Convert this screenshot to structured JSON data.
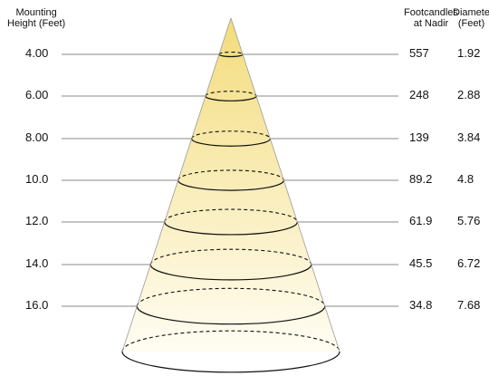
{
  "headers": {
    "height": [
      "Mounting",
      "Height (Feet)"
    ],
    "footcandles": [
      "Footcandles",
      "at Nadir"
    ],
    "diameter": [
      "Diamete",
      "(Feet)"
    ]
  },
  "rows": [
    {
      "height": "4.00",
      "footcandles": "557",
      "diameter": "1.92"
    },
    {
      "height": "6.00",
      "footcandles": "248",
      "diameter": "2.88"
    },
    {
      "height": "8.00",
      "footcandles": "139",
      "diameter": "3.84"
    },
    {
      "height": "10.0",
      "footcandles": "89.2",
      "diameter": "4.8"
    },
    {
      "height": "12.0",
      "footcandles": "61.9",
      "diameter": "5.76"
    },
    {
      "height": "14.0",
      "footcandles": "45.5",
      "diameter": "6.72"
    },
    {
      "height": "16.0",
      "footcandles": "34.8",
      "diameter": "7.68"
    }
  ],
  "colors": {
    "cone_top": "#f3dc7c",
    "cone_bottom": "#fffdf3",
    "rule_line": "#8a8a8a",
    "outline": "#111111"
  }
}
